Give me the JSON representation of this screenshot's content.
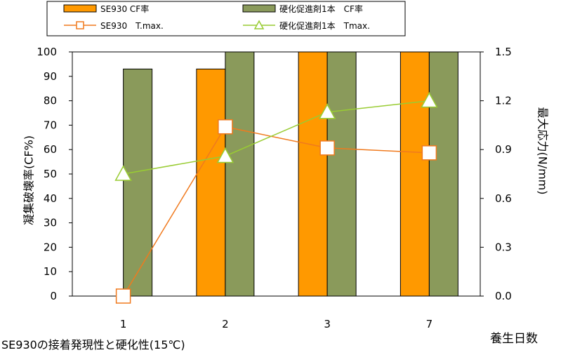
{
  "chart_data": {
    "type": "bar",
    "categories": [
      "1",
      "2",
      "3",
      "7"
    ],
    "series": [
      {
        "name": "SE930 CF率",
        "kind": "bar",
        "axis": "left",
        "color": "#FF9900",
        "values": [
          0,
          93,
          100,
          100
        ]
      },
      {
        "name": "硬化促進剤1本　CF率",
        "kind": "bar",
        "axis": "left",
        "color": "#8A9A5B",
        "values": [
          93,
          100,
          100,
          100
        ]
      },
      {
        "name": "SE930　T.max.",
        "kind": "line",
        "axis": "right",
        "color": "#F07A1E",
        "marker": "square",
        "values": [
          0.0,
          1.04,
          0.91,
          0.88
        ]
      },
      {
        "name": "硬化促進剤1本　Tmax.",
        "kind": "line",
        "axis": "right",
        "color": "#99CC33",
        "marker": "triangle",
        "values": [
          0.75,
          0.86,
          1.13,
          1.2
        ]
      }
    ],
    "ylabel": "凝集破壊率(CF%)",
    "y2label": "最大応力(N/mm)",
    "xlabel": "養生日数",
    "ylim": [
      0,
      100
    ],
    "y2lim": [
      0.0,
      1.5
    ],
    "yticks": [
      "0",
      "10",
      "20",
      "30",
      "40",
      "50",
      "60",
      "70",
      "80",
      "90",
      "100"
    ],
    "y2ticks": [
      "0.0",
      "0.3",
      "0.6",
      "0.9",
      "1.2",
      "1.5"
    ],
    "grid": false,
    "legend_position": "top"
  },
  "caption": "SE930の接着発現性と硬化性(15℃)"
}
